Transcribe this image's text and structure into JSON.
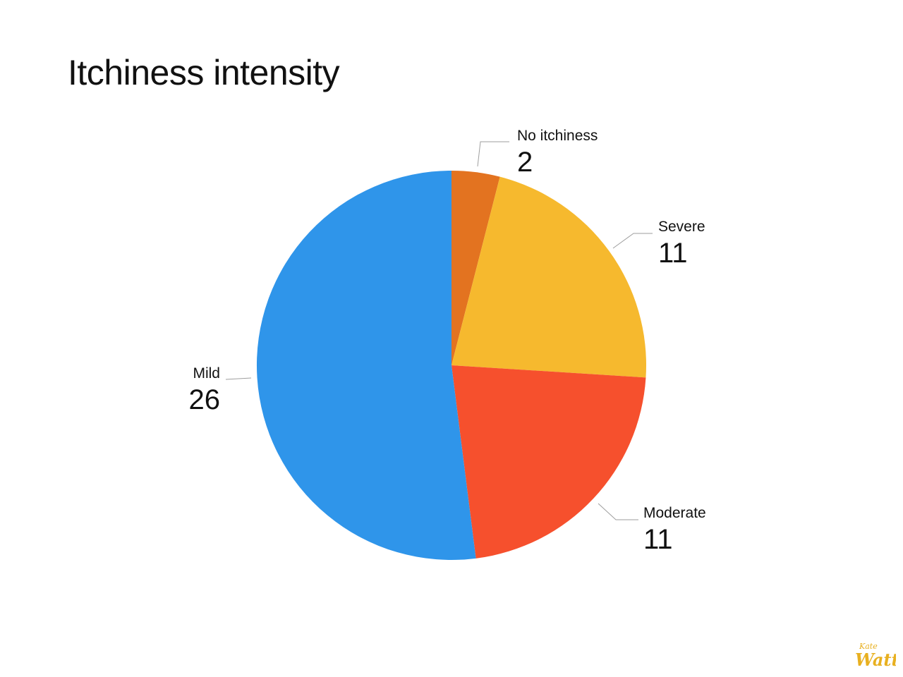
{
  "title": "Itchiness intensity",
  "chart_data": {
    "type": "pie",
    "title": "Itchiness intensity",
    "start_angle_deg": 0,
    "direction": "clockwise",
    "slices": [
      {
        "label": "No itchiness",
        "value": 2,
        "color": "#E37320"
      },
      {
        "label": "Severe",
        "value": 11,
        "color": "#F6B92E"
      },
      {
        "label": "Moderate",
        "value": 11,
        "color": "#F6502D"
      },
      {
        "label": "Mild",
        "value": 26,
        "color": "#2F95EA"
      }
    ]
  },
  "logo": {
    "text": "Kate Watt",
    "color": "#E8B020"
  }
}
